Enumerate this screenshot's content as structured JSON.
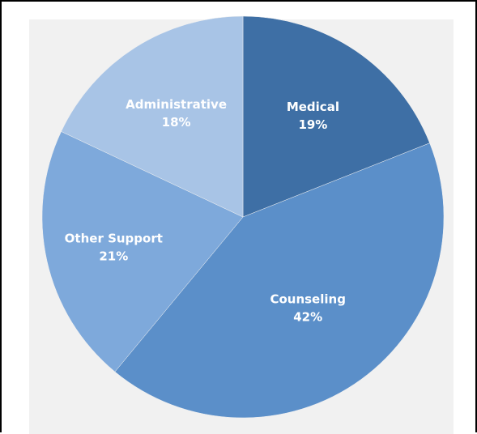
{
  "chart_data": {
    "type": "pie",
    "title": "",
    "slices": [
      {
        "label": "Medical",
        "value": 19,
        "value_label": "19%",
        "color": "#3e6fa5"
      },
      {
        "label": "Counseling",
        "value": 42,
        "value_label": "42%",
        "color": "#5b8fc9"
      },
      {
        "label": "Other Support",
        "value": 21,
        "value_label": "21%",
        "color": "#7ea9db"
      },
      {
        "label": "Administrative",
        "value": 18,
        "value_label": "18%",
        "color": "#a8c4e6"
      }
    ],
    "start_angle_deg": 0,
    "direction": "clockwise",
    "legend": "none",
    "background": "#f1f1f1"
  }
}
